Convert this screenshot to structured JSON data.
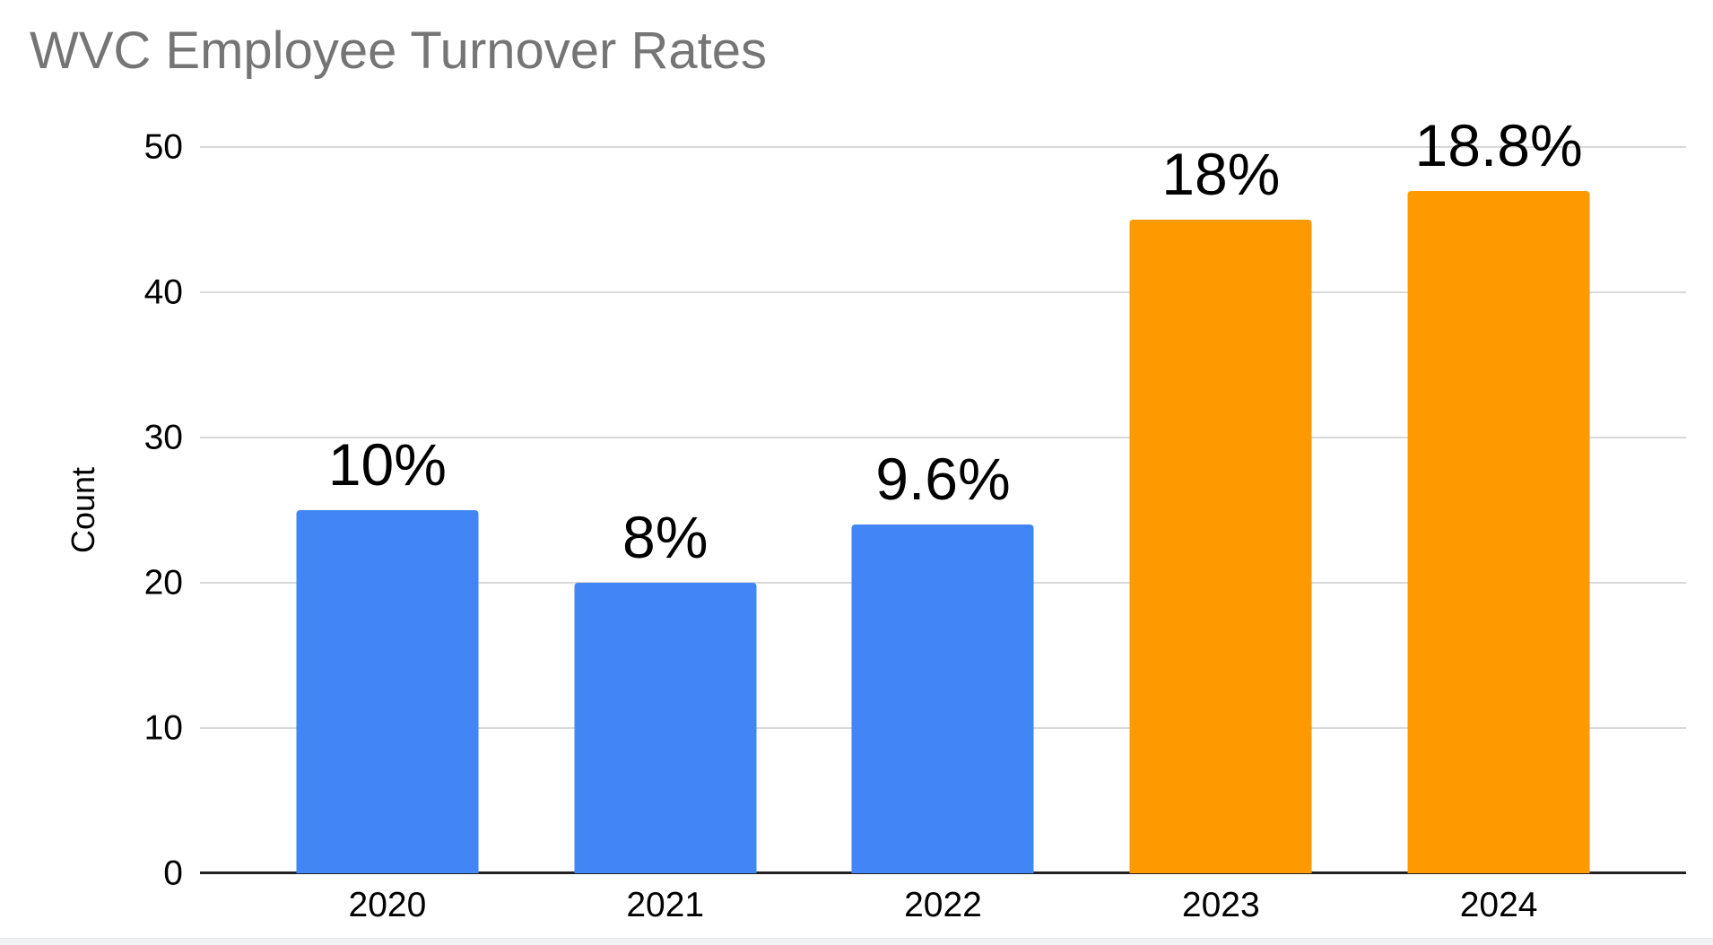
{
  "page": {
    "background_color": "#ffffff",
    "bottom_strip_color": "#f1f3f4"
  },
  "chart_data": {
    "type": "bar",
    "title": "WVC Employee Turnover Rates",
    "xlabel": "",
    "ylabel": "Count",
    "categories": [
      "2020",
      "2021",
      "2022",
      "2023",
      "2024"
    ],
    "values": [
      25,
      20,
      24,
      45,
      47
    ],
    "bar_labels": [
      "10%",
      "8%",
      "9.6%",
      "18%",
      "18.8%"
    ],
    "bar_colors": [
      "#4285f4",
      "#4285f4",
      "#4285f4",
      "#ff9900",
      "#ff9900"
    ],
    "ylim": [
      0,
      50
    ],
    "yticks": [
      0,
      10,
      20,
      30,
      40,
      50
    ],
    "grid": "horizontal gridlines on, every 10",
    "legend_position": "none",
    "colors": {
      "title": "#757575",
      "tick_label": "#000000",
      "data_label": "#000000",
      "gridline": "#d9d9d9",
      "axis_line": "#212121"
    }
  }
}
